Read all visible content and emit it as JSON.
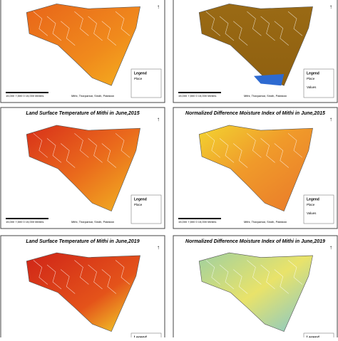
{
  "panels": [
    {
      "scale": "15,000 7,500 0 15,000 Meters",
      "credit": "Mithi, Tharparkar, Sindh, Pakistan",
      "legend": {
        "title": "Legend",
        "items": [
          "Place"
        ]
      }
    },
    {
      "scale": "15,000 7,500 0 15,000 Meters",
      "credit": "Mithi, Tharparkar, Sindh, Pakistan",
      "legend": {
        "title": "Legend",
        "items": [
          "Place",
          "Values"
        ]
      }
    },
    {
      "title": "Land Surface Temperature of Mithi in June,2015",
      "scale": "15,000 7,500 0 15,000 Meters",
      "credit": "Mithi, Tharparkar, Sindh, Pakistan",
      "legend": {
        "title": "Legend",
        "items": [
          "Place"
        ]
      }
    },
    {
      "title": "Normalized Difference Moisture Index of Mithi in June,2015",
      "scale": "15,000 7,500 0 15,000 Meters",
      "credit": "Mithi, Tharparkar, Sindh, Pakistan",
      "legend": {
        "title": "Legend",
        "items": [
          "Place",
          "Values"
        ]
      }
    },
    {
      "title": "Land Surface Temperature of Mithi in June,2019",
      "legend": {
        "title": "Legend"
      }
    },
    {
      "title": "Normalized Difference Moisture Index of Mithi in June,2019",
      "legend": {
        "title": "Legend"
      }
    }
  ]
}
